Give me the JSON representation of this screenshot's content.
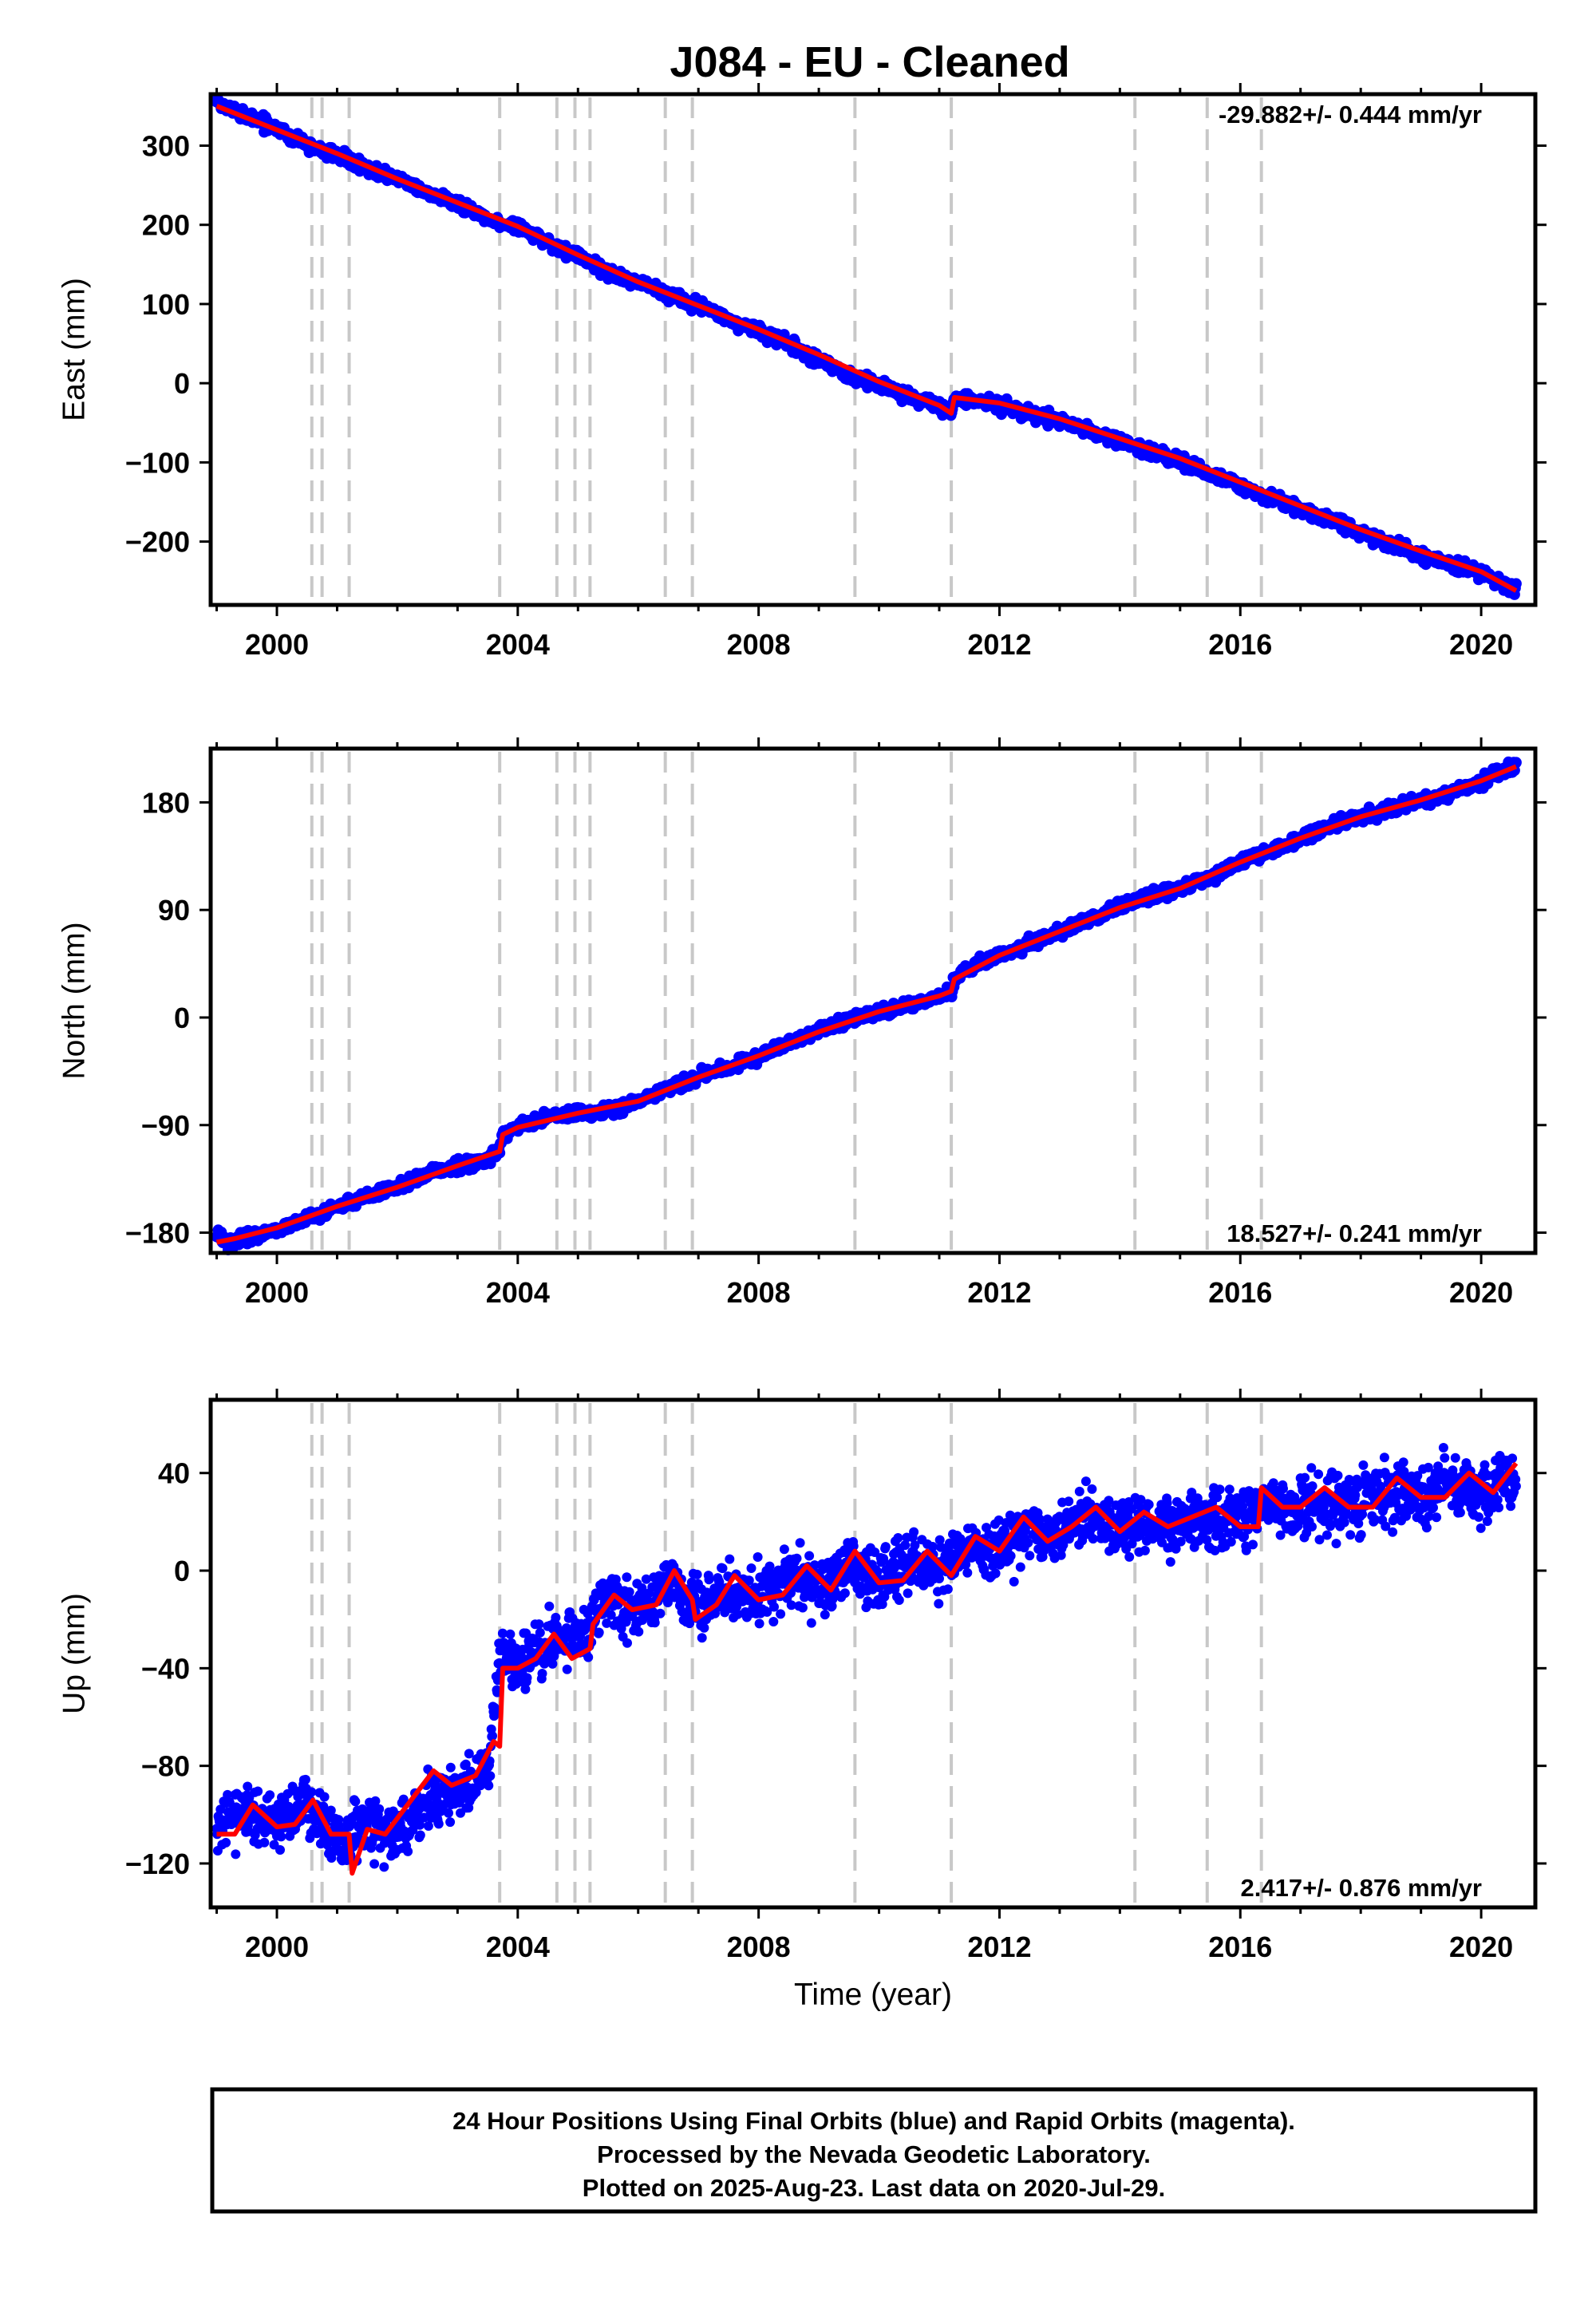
{
  "title": "J084  - EU - Cleaned",
  "chart_data": [
    {
      "type": "scatter",
      "ylabel": "East (mm)",
      "xlabel": "",
      "rate": "-29.882+/- 0.444 mm/yr",
      "rate_position": "top-right",
      "xlim": [
        1998.9,
        2020.9
      ],
      "ylim": [
        -280,
        365
      ],
      "x_ticks": [
        2000,
        2004,
        2008,
        2012,
        2016,
        2020
      ],
      "x_tick_labels": [
        "2000",
        "2004",
        "2008",
        "2012",
        "2016",
        "2020"
      ],
      "y_ticks": [
        300,
        200,
        100,
        0,
        -100,
        -200
      ],
      "y_tick_labels": [
        "300",
        "200",
        "100",
        "0",
        "−100",
        "−200"
      ],
      "series": [
        {
          "color": "#0000ff",
          "x": [
            1999.0,
            1999.5,
            2000.0,
            2000.5,
            2001.0,
            2001.5,
            2002.0,
            2002.5,
            2003.0,
            2003.5,
            2004.0,
            2004.5,
            2005.0,
            2005.5,
            2006.0,
            2006.5,
            2007.0,
            2007.5,
            2008.0,
            2008.5,
            2009.0,
            2009.5,
            2010.0,
            2010.5,
            2011.0,
            2011.2,
            2011.25,
            2011.5,
            2012.0,
            2012.5,
            2013.0,
            2013.5,
            2014.0,
            2014.5,
            2015.0,
            2015.5,
            2016.0,
            2016.5,
            2017.0,
            2017.5,
            2018.0,
            2018.5,
            2019.0,
            2019.5,
            2020.0,
            2020.58
          ],
          "y": [
            352,
            338,
            322,
            300,
            288,
            270,
            258,
            240,
            225,
            208,
            198,
            178,
            160,
            140,
            128,
            112,
            98,
            80,
            65,
            50,
            30,
            10,
            -2,
            -18,
            -30,
            -38,
            -18,
            -22,
            -28,
            -38,
            -48,
            -60,
            -72,
            -85,
            -98,
            -115,
            -130,
            -145,
            -160,
            -172,
            -188,
            -205,
            -218,
            -228,
            -238,
            -262
          ]
        },
        {
          "color": "#ff0000",
          "x": [
            1999.0,
            2000.0,
            2001.0,
            2002.0,
            2003.0,
            2004.0,
            2005.0,
            2006.0,
            2007.0,
            2008.0,
            2009.0,
            2010.0,
            2011.0,
            2011.2,
            2011.25,
            2012.0,
            2013.0,
            2014.0,
            2015.0,
            2016.0,
            2017.0,
            2018.0,
            2019.0,
            2020.0,
            2020.58
          ],
          "y": [
            350,
            320,
            290,
            258,
            228,
            198,
            162,
            128,
            98,
            68,
            36,
            2,
            -28,
            -38,
            -18,
            -25,
            -45,
            -70,
            -95,
            -125,
            -155,
            -185,
            -212,
            -238,
            -262
          ]
        }
      ]
    },
    {
      "type": "scatter",
      "ylabel": "North (mm)",
      "xlabel": "",
      "rate": "18.527+/- 0.241 mm/yr",
      "rate_position": "bottom-right",
      "xlim": [
        1998.9,
        2020.9
      ],
      "ylim": [
        -197,
        225
      ],
      "x_ticks": [
        2000,
        2004,
        2008,
        2012,
        2016,
        2020
      ],
      "x_tick_labels": [
        "2000",
        "2004",
        "2008",
        "2012",
        "2016",
        "2020"
      ],
      "y_ticks": [
        180,
        90,
        0,
        -90,
        -180
      ],
      "y_tick_labels": [
        "180",
        "90",
        "0",
        "−90",
        "−180"
      ],
      "series": [
        {
          "color": "#0000ff",
          "x": [
            1999.0,
            1999.2,
            1999.5,
            2000.0,
            2000.5,
            2001.0,
            2001.5,
            2002.0,
            2002.5,
            2003.0,
            2003.5,
            2003.7,
            2003.75,
            2004.0,
            2004.5,
            2005.0,
            2005.5,
            2006.0,
            2006.5,
            2007.0,
            2007.5,
            2008.0,
            2008.5,
            2009.0,
            2009.5,
            2010.0,
            2010.5,
            2011.0,
            2011.2,
            2011.25,
            2011.5,
            2012.0,
            2012.5,
            2013.0,
            2013.5,
            2014.0,
            2014.5,
            2015.0,
            2015.5,
            2016.0,
            2016.5,
            2017.0,
            2017.5,
            2018.0,
            2018.5,
            2019.0,
            2019.5,
            2020.0,
            2020.58
          ],
          "y": [
            -180,
            -188,
            -185,
            -178,
            -168,
            -158,
            -150,
            -142,
            -130,
            -124,
            -118,
            -112,
            -98,
            -92,
            -82,
            -80,
            -78,
            -70,
            -60,
            -50,
            -42,
            -32,
            -22,
            -12,
            -2,
            5,
            10,
            18,
            22,
            32,
            42,
            52,
            62,
            72,
            82,
            92,
            102,
            108,
            118,
            130,
            140,
            150,
            160,
            168,
            175,
            182,
            188,
            198,
            212
          ]
        },
        {
          "color": "#ff0000",
          "x": [
            1999.0,
            1999.3,
            2000.0,
            2001.0,
            2002.0,
            2003.0,
            2003.7,
            2003.75,
            2004.0,
            2005.0,
            2006.0,
            2007.0,
            2008.0,
            2009.0,
            2010.0,
            2011.0,
            2011.2,
            2011.25,
            2012.0,
            2013.0,
            2014.0,
            2015.0,
            2016.0,
            2017.0,
            2018.0,
            2019.0,
            2020.0,
            2020.58
          ],
          "y": [
            -188,
            -185,
            -176,
            -158,
            -142,
            -124,
            -112,
            -98,
            -92,
            -80,
            -70,
            -50,
            -32,
            -12,
            5,
            18,
            22,
            32,
            52,
            72,
            92,
            108,
            130,
            150,
            168,
            182,
            198,
            210
          ]
        }
      ]
    },
    {
      "type": "scatter",
      "ylabel": "Up (mm)",
      "xlabel": "Time (year)",
      "rate": "2.417+/- 0.876 mm/yr",
      "rate_position": "bottom-right",
      "xlim": [
        1998.9,
        2020.9
      ],
      "ylim": [
        -138,
        70
      ],
      "x_ticks": [
        2000,
        2004,
        2008,
        2012,
        2016,
        2020
      ],
      "x_tick_labels": [
        "2000",
        "2004",
        "2008",
        "2012",
        "2016",
        "2020"
      ],
      "y_ticks": [
        40,
        0,
        -40,
        -80,
        -120
      ],
      "y_tick_labels": [
        "40",
        "0",
        "−40",
        "−80",
        "−120"
      ],
      "series": [
        {
          "color": "#0000ff",
          "x": [
            1999.0,
            1999.5,
            2000.0,
            2000.5,
            2001.0,
            2001.5,
            2002.0,
            2002.5,
            2003.0,
            2003.5,
            2003.7,
            2004.0,
            2004.5,
            2005.0,
            2005.5,
            2006.0,
            2006.5,
            2007.0,
            2007.5,
            2008.0,
            2008.5,
            2009.0,
            2009.5,
            2010.0,
            2010.5,
            2011.0,
            2011.5,
            2012.0,
            2012.5,
            2013.0,
            2013.5,
            2014.0,
            2014.5,
            2015.0,
            2015.5,
            2016.0,
            2016.5,
            2017.0,
            2017.5,
            2018.0,
            2018.5,
            2019.0,
            2019.5,
            2020.0,
            2020.58
          ],
          "y": [
            -105,
            -98,
            -105,
            -95,
            -110,
            -105,
            -108,
            -95,
            -88,
            -85,
            -35,
            -38,
            -32,
            -28,
            -10,
            -18,
            -5,
            -15,
            -8,
            -12,
            -2,
            -8,
            2,
            -5,
            5,
            0,
            10,
            8,
            18,
            15,
            22,
            18,
            20,
            18,
            22,
            20,
            28,
            25,
            28,
            28,
            32,
            30,
            35,
            32,
            38
          ]
        },
        {
          "color": "#ff0000",
          "x": [
            1999.0,
            1999.3,
            1999.6,
            2000.0,
            2000.3,
            2000.6,
            2000.9,
            2001.2,
            2001.25,
            2001.5,
            2001.8,
            2002.2,
            2002.6,
            2002.9,
            2003.3,
            2003.6,
            2003.7,
            2003.75,
            2004.0,
            2004.3,
            2004.6,
            2004.9,
            2005.2,
            2005.25,
            2005.6,
            2005.9,
            2006.3,
            2006.6,
            2006.9,
            2006.95,
            2007.3,
            2007.6,
            2008.0,
            2008.4,
            2008.8,
            2009.2,
            2009.6,
            2010.0,
            2010.4,
            2010.8,
            2011.2,
            2011.6,
            2012.0,
            2012.4,
            2012.8,
            2013.2,
            2013.6,
            2014.0,
            2014.4,
            2014.8,
            2015.2,
            2015.6,
            2016.0,
            2016.3,
            2016.35,
            2016.7,
            2017.0,
            2017.4,
            2017.8,
            2018.2,
            2018.6,
            2019.0,
            2019.4,
            2019.8,
            2020.2,
            2020.58
          ],
          "y": [
            -108,
            -108,
            -96,
            -105,
            -104,
            -94,
            -108,
            -108,
            -124,
            -106,
            -108,
            -95,
            -82,
            -88,
            -84,
            -70,
            -72,
            -40,
            -40,
            -36,
            -26,
            -36,
            -32,
            -22,
            -10,
            -16,
            -14,
            0,
            -12,
            -20,
            -14,
            -2,
            -12,
            -10,
            2,
            -8,
            8,
            -5,
            -4,
            8,
            -2,
            14,
            8,
            22,
            12,
            18,
            26,
            16,
            24,
            18,
            22,
            26,
            18,
            18,
            34,
            26,
            26,
            34,
            26,
            26,
            38,
            30,
            30,
            40,
            32,
            44
          ]
        }
      ]
    }
  ],
  "steps": [
    2000.58,
    2000.75,
    2001.2,
    2003.7,
    2004.65,
    2004.95,
    2005.2,
    2006.45,
    2006.9,
    2009.6,
    2011.2,
    2014.25,
    2015.45,
    2016.35
  ],
  "footer": {
    "line1": "24 Hour Positions Using Final Orbits (blue) and Rapid Orbits (magenta).",
    "line2": "Processed by the Nevada Geodetic Laboratory.",
    "line3": "Plotted on 2025-Aug-23. Last data on 2020-Jul-29."
  }
}
